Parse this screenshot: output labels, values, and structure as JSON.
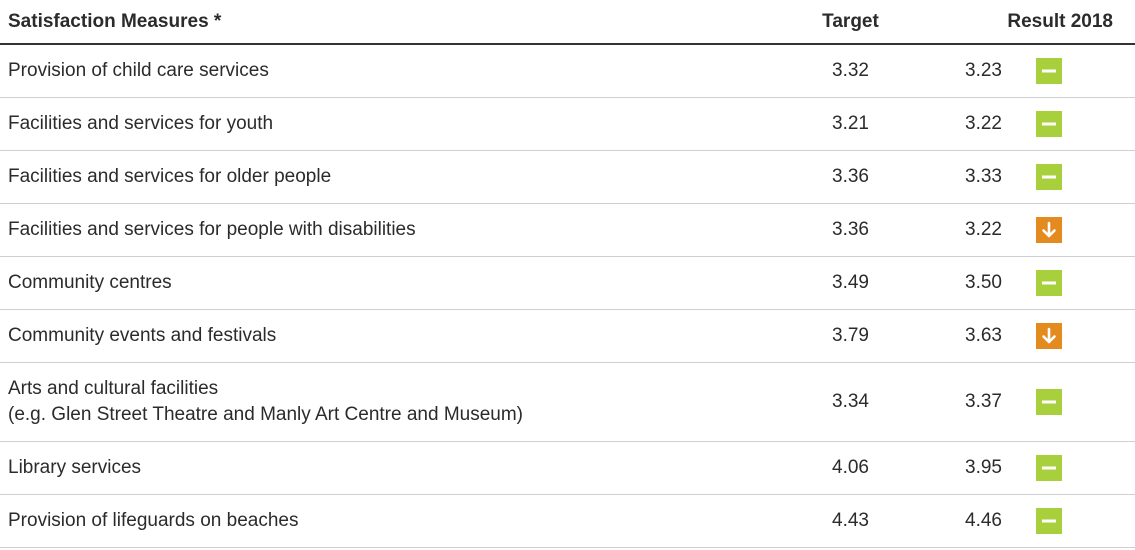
{
  "table": {
    "header": [
      "Satisfaction Measures *",
      "Target",
      "Result 2018"
    ],
    "rows": [
      {
        "measure": [
          "Provision of child care services"
        ],
        "target": "3.32",
        "result": "3.23",
        "status": "steady"
      },
      {
        "measure": [
          "Facilities and services for youth"
        ],
        "target": "3.21",
        "result": "3.22",
        "status": "steady"
      },
      {
        "measure": [
          "Facilities and services for older people"
        ],
        "target": "3.36",
        "result": "3.33",
        "status": "steady"
      },
      {
        "measure": [
          "Facilities and services for people with disabilities"
        ],
        "target": "3.36",
        "result": "3.22",
        "status": "down"
      },
      {
        "measure": [
          "Community centres"
        ],
        "target": "3.49",
        "result": "3.50",
        "status": "steady"
      },
      {
        "measure": [
          "Community events and festivals"
        ],
        "target": "3.79",
        "result": "3.63",
        "status": "down"
      },
      {
        "measure": [
          "Arts and cultural facilities",
          "(e.g. Glen Street Theatre and Manly Art Centre and Museum)"
        ],
        "target": "3.34",
        "result": "3.37",
        "status": "steady"
      },
      {
        "measure": [
          "Library services"
        ],
        "target": "4.06",
        "result": "3.95",
        "status": "steady"
      },
      {
        "measure": [
          "Provision of lifeguards on beaches"
        ],
        "target": "4.43",
        "result": "4.46",
        "status": "steady"
      }
    ],
    "status_colors": {
      "steady": "#a8cf3c",
      "down": "#e38b1f"
    }
  }
}
